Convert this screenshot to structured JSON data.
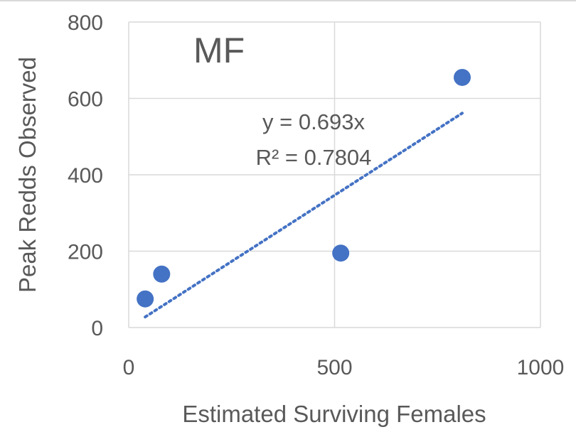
{
  "chart_data": {
    "type": "scatter",
    "title": "MF",
    "xlabel": "Estimated Surviving Females",
    "ylabel": "Peak Redds Observed",
    "xlim": [
      0,
      1000
    ],
    "ylim": [
      0,
      800
    ],
    "xticks": [
      "0",
      "500",
      "1000"
    ],
    "yticks": [
      "0",
      "200",
      "400",
      "600",
      "800"
    ],
    "grid": true,
    "legend": "none",
    "series": [
      {
        "points": [
          {
            "x": 40,
            "y": 75
          },
          {
            "x": 80,
            "y": 140
          },
          {
            "x": 515,
            "y": 195
          },
          {
            "x": 810,
            "y": 655
          }
        ],
        "color": "#4472c4"
      }
    ],
    "trendline": {
      "type": "linear",
      "slope": 0.693,
      "intercept": 0,
      "x_range": [
        40,
        810
      ],
      "style": "dotted",
      "color": "#4472c4",
      "equation": "y = 0.693x",
      "r_squared": "R² = 0.7804"
    }
  }
}
